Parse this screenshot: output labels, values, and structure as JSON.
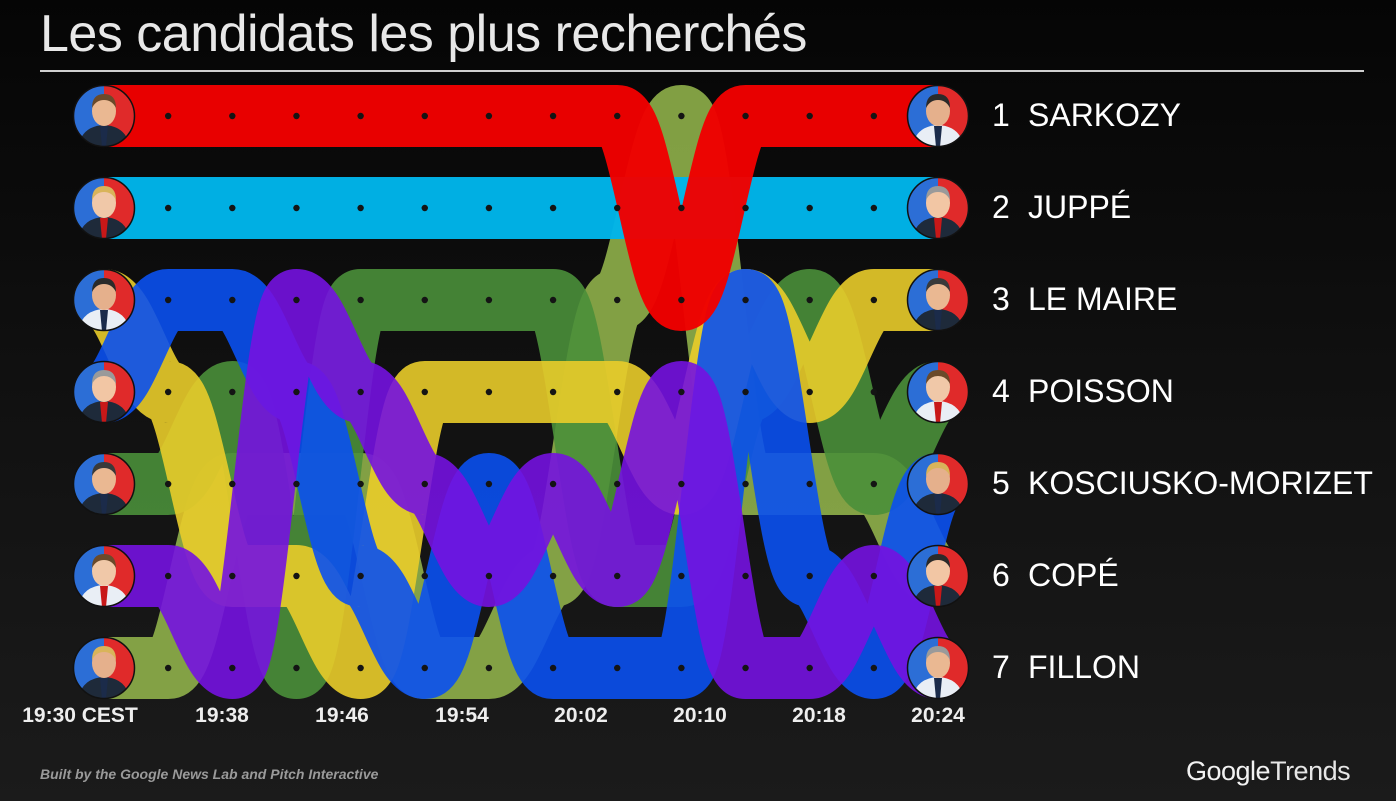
{
  "title": "Les candidats les plus recherchés",
  "credit": "Built by the Google News Lab and Pitch Interactive",
  "brand": {
    "part1": "Google",
    "part2": "Trends"
  },
  "chart_data": {
    "type": "line",
    "subtype": "bump",
    "x": [
      "19:30 CEST",
      "19:38",
      "19:46",
      "19:54",
      "20:02",
      "20:10",
      "20:18",
      "20:24"
    ],
    "x_ticks": [
      "19:30 CEST",
      "19:38",
      "19:46",
      "19:54",
      "20:02",
      "20:10",
      "20:18",
      "20:24"
    ],
    "time_steps": 14,
    "final_ranking": [
      {
        "rank": "1",
        "name": "SARKOZY"
      },
      {
        "rank": "2",
        "name": "JUPPÉ"
      },
      {
        "rank": "3",
        "name": "LE MAIRE"
      },
      {
        "rank": "4",
        "name": "POISSON"
      },
      {
        "rank": "5",
        "name": "KOSCIUSKO-MORIZET"
      },
      {
        "rank": "6",
        "name": "COPÉ"
      },
      {
        "rank": "7",
        "name": "FILLON"
      }
    ],
    "series": [
      {
        "id": "sarkozy",
        "color": "#f00000",
        "ranks": [
          1,
          1,
          1,
          1,
          1,
          1,
          1,
          1,
          1,
          3,
          1,
          1,
          1,
          1
        ]
      },
      {
        "id": "juppe",
        "color": "#00b5ea",
        "ranks": [
          2,
          2,
          2,
          2,
          2,
          2,
          2,
          2,
          2,
          2,
          2,
          2,
          2,
          2
        ]
      },
      {
        "id": "olive",
        "color": "#8fb04a",
        "ranks": [
          7,
          7,
          5,
          5,
          5,
          7,
          7,
          6,
          3,
          1,
          5,
          5,
          5,
          6
        ]
      },
      {
        "id": "green",
        "color": "#4a8f3a",
        "ranks": [
          5,
          5,
          4,
          7,
          3,
          3,
          3,
          3,
          6,
          6,
          4,
          3,
          5,
          4
        ]
      },
      {
        "id": "yellow",
        "color": "#e9cc2a",
        "ranks": [
          3,
          4,
          6,
          6,
          7,
          4,
          4,
          4,
          4,
          5,
          3,
          4,
          3,
          3
        ]
      },
      {
        "id": "blue",
        "color": "#0a50f0",
        "ranks": [
          4,
          3,
          3,
          4,
          6,
          7,
          5,
          7,
          7,
          7,
          3,
          6,
          7,
          5
        ]
      },
      {
        "id": "purple",
        "color": "#7412e0",
        "ranks": [
          6,
          6,
          7,
          3,
          4,
          5,
          6,
          5,
          6,
          4,
          7,
          7,
          6,
          7
        ]
      }
    ]
  }
}
